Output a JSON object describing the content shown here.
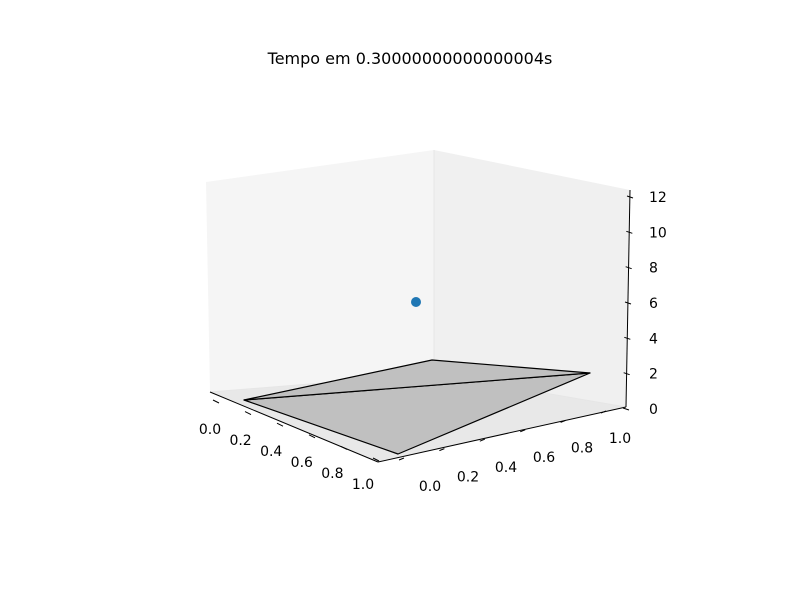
{
  "figure": {
    "title": "Tempo em 0.30000000000000004s"
  },
  "chart_data": {
    "type": "scatter",
    "projection": "3d",
    "title": "Tempo em 0.30000000000000004s",
    "xlabel": "",
    "ylabel": "",
    "zlabel": "",
    "xlim": [
      0.0,
      1.0
    ],
    "ylim": [
      0.0,
      1.0
    ],
    "zlim": [
      0,
      12
    ],
    "x_ticks": [
      "0.0",
      "0.2",
      "0.4",
      "0.6",
      "0.8",
      "1.0"
    ],
    "y_ticks": [
      "0.0",
      "0.2",
      "0.4",
      "0.6",
      "0.8",
      "1.0"
    ],
    "z_ticks": [
      "0",
      "2",
      "4",
      "6",
      "8",
      "10",
      "12"
    ],
    "grid": false,
    "point": {
      "x": 0.5,
      "y": 0.5,
      "z": 7.0,
      "color": "#1f77b4"
    },
    "surface": {
      "x": [
        [
          0,
          1
        ],
        [
          0,
          1
        ]
      ],
      "y": [
        [
          0,
          0
        ],
        [
          1,
          1
        ]
      ],
      "z": [
        [
          0,
          0
        ],
        [
          0,
          0
        ]
      ],
      "face_color": "#c0c0c0",
      "edge_color": "#000000",
      "triangles": 2
    },
    "colors": {
      "pane_back": "#f0f0f0",
      "pane_side": "#f5f5f5",
      "pane_floor": "#e8e8e8"
    }
  }
}
